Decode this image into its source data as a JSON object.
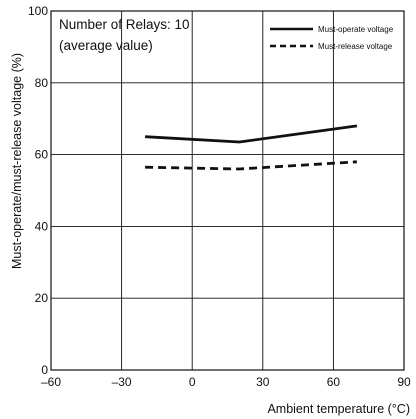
{
  "chart_data": {
    "type": "line",
    "title": "",
    "xlabel": "Ambient temperature (°C)",
    "ylabel": "Must-operate/must-release voltage (%)",
    "xlim": [
      -60,
      90
    ],
    "ylim": [
      0,
      100
    ],
    "x_ticks": [
      -60,
      -30,
      0,
      30,
      60,
      90
    ],
    "y_ticks": [
      0,
      20,
      40,
      60,
      80,
      100
    ],
    "x_tick_labels": [
      "–60",
      "–30",
      "0",
      "30",
      "60",
      "90"
    ],
    "y_tick_labels": [
      "0",
      "20",
      "40",
      "60",
      "80",
      "100"
    ],
    "grid": true,
    "legend_position": "top-right",
    "annotations": [
      "Number of Relays: 10",
      "(average value)"
    ],
    "series": [
      {
        "name": "Must-operate voltage",
        "style": "solid",
        "x": [
          -20,
          20,
          70
        ],
        "y": [
          65,
          63.5,
          68
        ]
      },
      {
        "name": "Must-release voltage",
        "style": "dashed",
        "x": [
          -20,
          20,
          70
        ],
        "y": [
          56.5,
          56,
          58
        ]
      }
    ],
    "colors": {
      "line": "#111111",
      "grid": "#111111",
      "background": "#ffffff"
    }
  }
}
